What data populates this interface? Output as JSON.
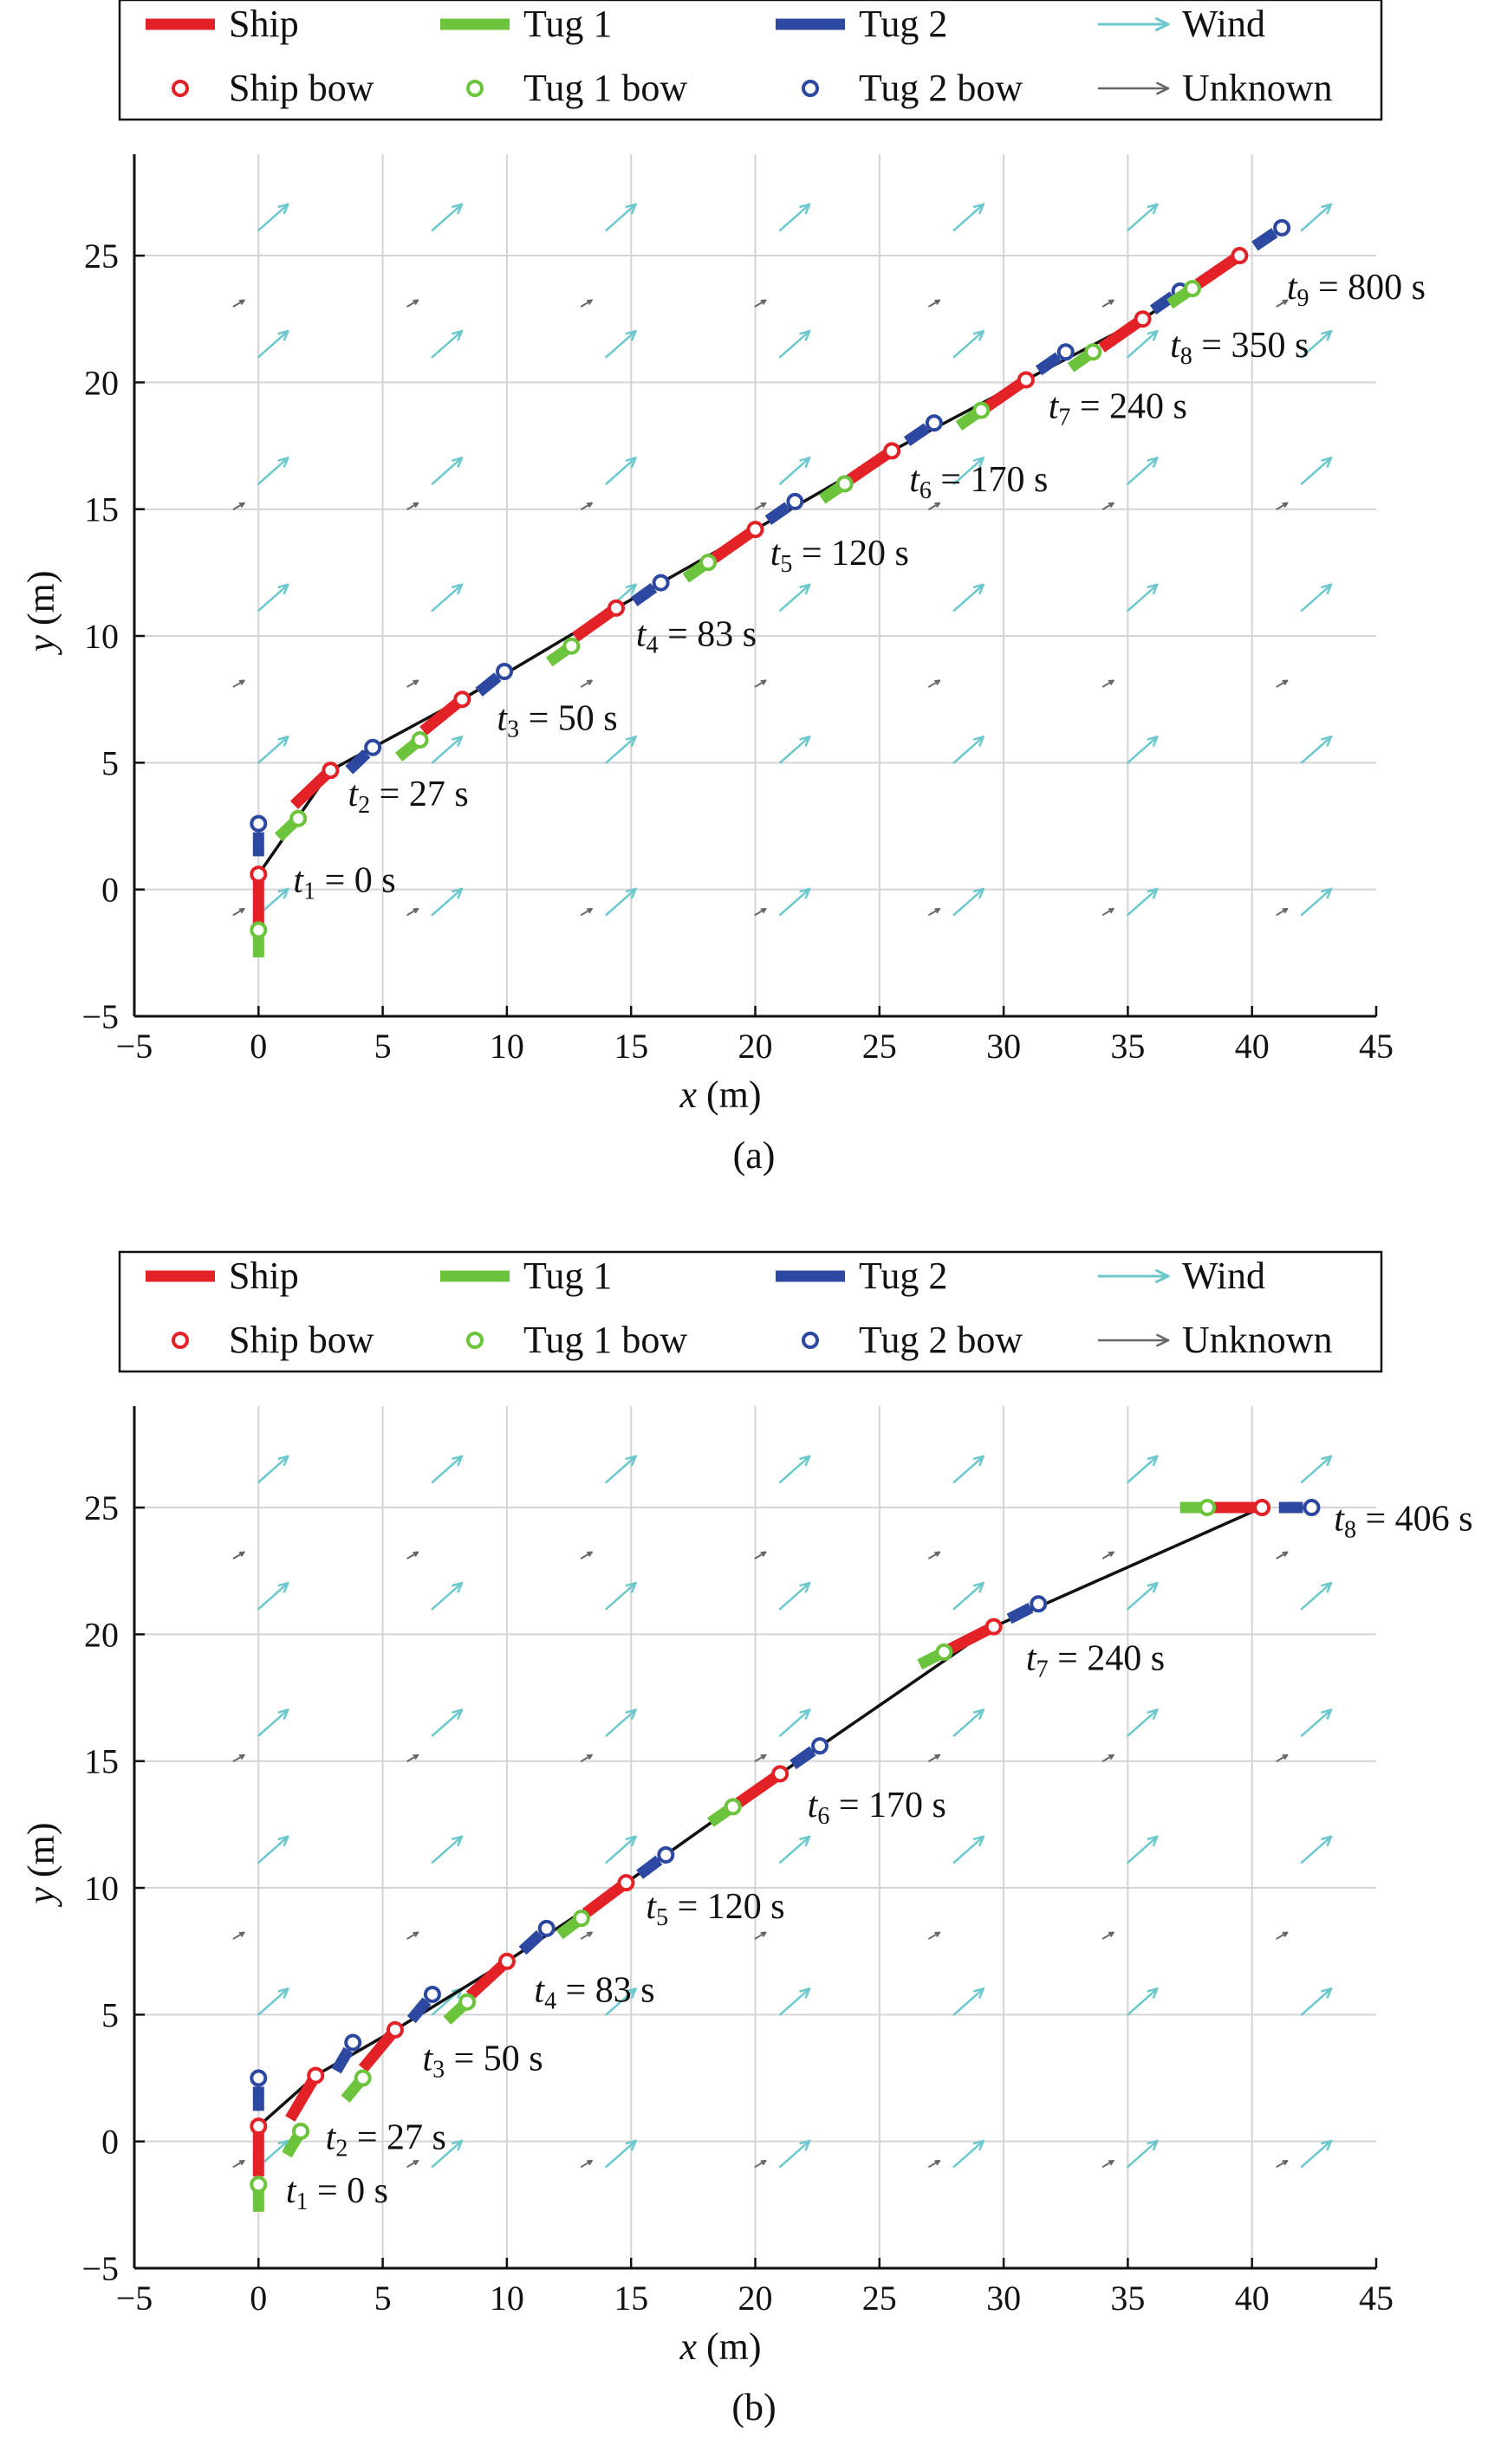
{
  "legend": {
    "ship": "Ship",
    "tug1": "Tug 1",
    "tug2": "Tug 2",
    "wind": "Wind",
    "ship_bow": "Ship bow",
    "tug1_bow": "Tug 1 bow",
    "tug2_bow": "Tug 2 bow",
    "unknown": "Unknown"
  },
  "colors": {
    "ship": "#e32228",
    "tug1": "#6cc33c",
    "tug2": "#2c48a0",
    "wind": "#6cc8cc",
    "unknown": "#666666",
    "path": "#111111",
    "grid": "#d4d4d4"
  },
  "chart_data": [
    {
      "type": "scatter",
      "caption": "(a)",
      "xlabel_var": "x",
      "xlabel_unit": " (m)",
      "ylabel_var": "y",
      "ylabel_unit": " (m)",
      "xlim": [
        -5,
        45
      ],
      "ylim": [
        -5,
        29
      ],
      "xticks": [
        -5,
        0,
        5,
        10,
        15,
        20,
        25,
        30,
        35,
        40,
        45
      ],
      "yticks": [
        -5,
        0,
        5,
        10,
        15,
        20,
        25
      ],
      "grid": true,
      "legend_position": "top",
      "snapshots": [
        {
          "label_sub": "1",
          "label_text": " = 0 s",
          "tug1_bow": [
            0,
            -1.6
          ],
          "ship_bow": [
            0,
            0.6
          ],
          "tug2_bow": [
            0,
            2.6
          ],
          "label_at": [
            1.4,
            -0.1
          ]
        },
        {
          "label_sub": "2",
          "label_text": " = 27 s",
          "tug1_bow": [
            1.6,
            2.8
          ],
          "ship_bow": [
            2.9,
            4.7
          ],
          "tug2_bow": [
            4.6,
            5.6
          ],
          "label_at": [
            3.6,
            3.3
          ]
        },
        {
          "label_sub": "3",
          "label_text": " = 50 s",
          "tug1_bow": [
            6.5,
            5.9
          ],
          "ship_bow": [
            8.2,
            7.5
          ],
          "tug2_bow": [
            9.9,
            8.6
          ],
          "label_at": [
            9.6,
            6.3
          ]
        },
        {
          "label_sub": "4",
          "label_text": " = 83 s",
          "tug1_bow": [
            12.6,
            9.6
          ],
          "ship_bow": [
            14.4,
            11.1
          ],
          "tug2_bow": [
            16.2,
            12.1
          ],
          "label_at": [
            15.2,
            9.6
          ]
        },
        {
          "label_sub": "5",
          "label_text": " = 120 s",
          "tug1_bow": [
            18.1,
            12.9
          ],
          "ship_bow": [
            20.0,
            14.2
          ],
          "tug2_bow": [
            21.6,
            15.3
          ],
          "label_at": [
            20.6,
            12.8
          ]
        },
        {
          "label_sub": "6",
          "label_text": " = 170 s",
          "tug1_bow": [
            23.6,
            16.0
          ],
          "ship_bow": [
            25.5,
            17.3
          ],
          "tug2_bow": [
            27.2,
            18.4
          ],
          "label_at": [
            26.2,
            15.7
          ]
        },
        {
          "label_sub": "7",
          "label_text": " = 240 s",
          "tug1_bow": [
            29.1,
            18.9
          ],
          "ship_bow": [
            30.9,
            20.1
          ],
          "tug2_bow": [
            32.5,
            21.2
          ],
          "label_at": [
            31.8,
            18.6
          ]
        },
        {
          "label_sub": "8",
          "label_text": " = 350 s",
          "tug1_bow": [
            33.6,
            21.2
          ],
          "ship_bow": [
            35.6,
            22.5
          ],
          "tug2_bow": [
            37.1,
            23.6
          ],
          "label_at": [
            36.7,
            21.0
          ]
        },
        {
          "label_sub": "9",
          "label_text": " = 800 s",
          "tug1_bow": [
            37.6,
            23.7
          ],
          "ship_bow": [
            39.5,
            25.0
          ],
          "tug2_bow": [
            41.2,
            26.1
          ],
          "label_at": [
            41.4,
            23.3
          ]
        }
      ],
      "wind_rows": [
        -1,
        5,
        11,
        16,
        21,
        26
      ],
      "unknown_rows": [
        -1,
        8,
        15,
        23
      ]
    },
    {
      "type": "scatter",
      "caption": "(b)",
      "xlabel_var": "x",
      "xlabel_unit": " (m)",
      "ylabel_var": "y",
      "ylabel_unit": " (m)",
      "xlim": [
        -5,
        45
      ],
      "ylim": [
        -5,
        29
      ],
      "xticks": [
        -5,
        0,
        5,
        10,
        15,
        20,
        25,
        30,
        35,
        40,
        45
      ],
      "yticks": [
        -5,
        0,
        5,
        10,
        15,
        20,
        25
      ],
      "grid": true,
      "legend_position": "top",
      "snapshots": [
        {
          "label_sub": "1",
          "label_text": " = 0 s",
          "tug1_bow": [
            0,
            -1.7
          ],
          "ship_bow": [
            0,
            0.6
          ],
          "tug2_bow": [
            0,
            2.5
          ],
          "label_at": [
            1.1,
            -2.4
          ]
        },
        {
          "label_sub": "2",
          "label_text": " = 27 s",
          "tug1_bow": [
            1.7,
            0.4
          ],
          "ship_bow": [
            2.3,
            2.6
          ],
          "tug2_bow": [
            3.8,
            3.9
          ],
          "label_at": [
            2.7,
            -0.3
          ]
        },
        {
          "label_sub": "3",
          "label_text": " = 50 s",
          "tug1_bow": [
            4.2,
            2.5
          ],
          "ship_bow": [
            5.5,
            4.4
          ],
          "tug2_bow": [
            7.0,
            5.8
          ],
          "label_at": [
            6.6,
            2.8
          ]
        },
        {
          "label_sub": "4",
          "label_text": " = 83 s",
          "tug1_bow": [
            8.4,
            5.5
          ],
          "ship_bow": [
            10.0,
            7.1
          ],
          "tug2_bow": [
            11.6,
            8.4
          ],
          "label_at": [
            11.1,
            5.5
          ]
        },
        {
          "label_sub": "5",
          "label_text": " = 120 s",
          "tug1_bow": [
            13.0,
            8.8
          ],
          "ship_bow": [
            14.8,
            10.2
          ],
          "tug2_bow": [
            16.4,
            11.3
          ],
          "label_at": [
            15.6,
            8.8
          ]
        },
        {
          "label_sub": "6",
          "label_text": " = 170 s",
          "tug1_bow": [
            19.1,
            13.2
          ],
          "ship_bow": [
            21.0,
            14.5
          ],
          "tug2_bow": [
            22.6,
            15.6
          ],
          "label_at": [
            22.1,
            12.8
          ]
        },
        {
          "label_sub": "7",
          "label_text": " = 240 s",
          "tug1_bow": [
            27.6,
            19.3
          ],
          "ship_bow": [
            29.6,
            20.3
          ],
          "tug2_bow": [
            31.4,
            21.2
          ],
          "label_at": [
            30.9,
            18.6
          ]
        },
        {
          "label_sub": "8",
          "label_text": " = 406 s",
          "tug1_bow": [
            38.2,
            25.0
          ],
          "ship_bow": [
            40.4,
            25.0
          ],
          "tug2_bow": [
            42.4,
            25.0
          ],
          "label_at": [
            43.3,
            24.1
          ]
        }
      ],
      "wind_rows": [
        -1,
        5,
        11,
        16,
        21,
        26
      ],
      "unknown_rows": [
        -1,
        8,
        15,
        23
      ]
    }
  ]
}
